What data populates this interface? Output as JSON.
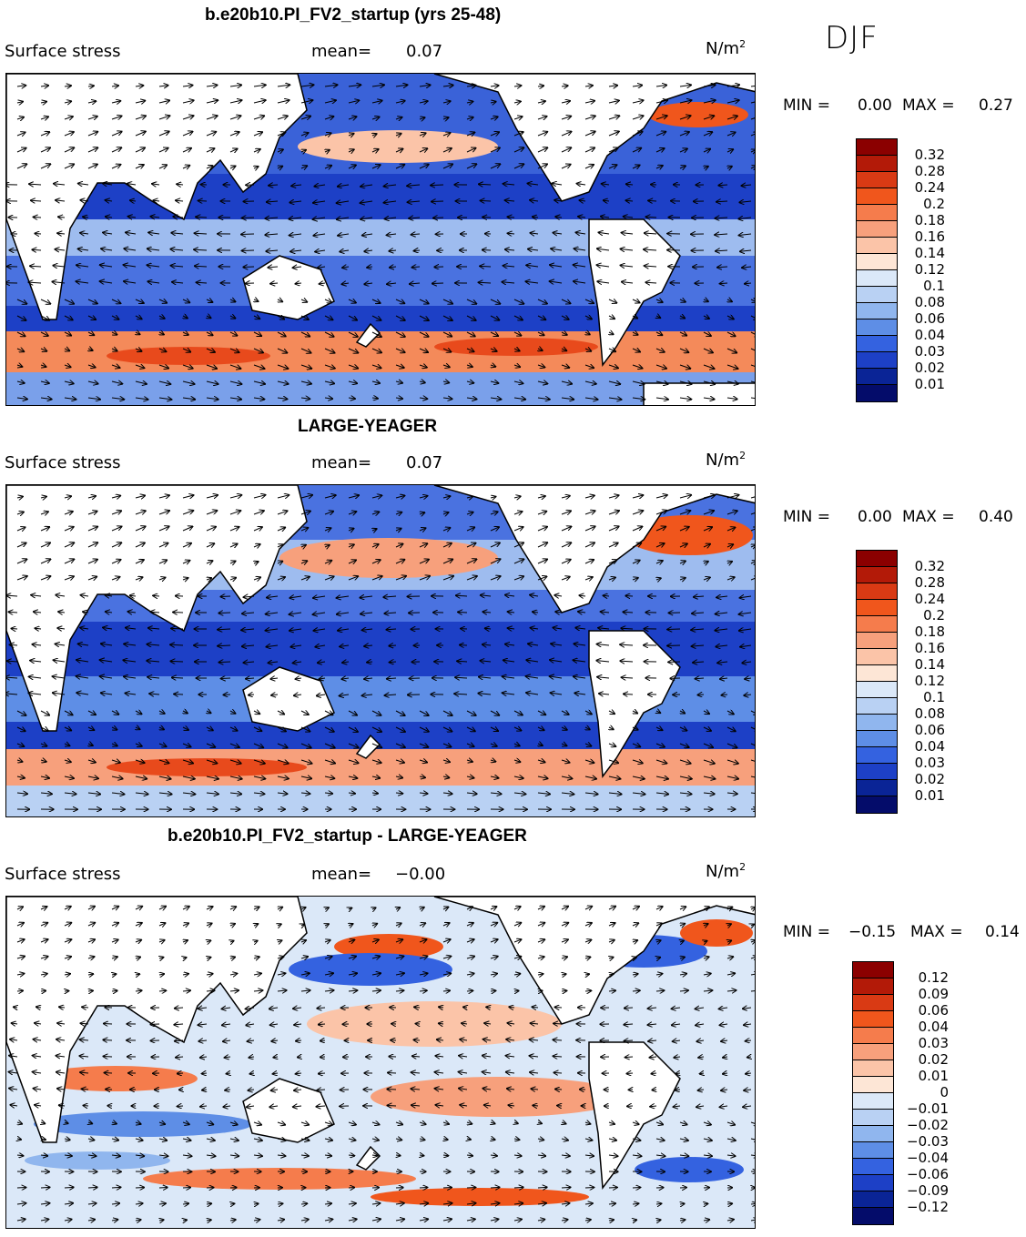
{
  "season": "DJF",
  "units": "N/m",
  "units_sup": "2",
  "field_label": "Surface stress",
  "mean_label": "mean=",
  "panels": [
    {
      "title": "b.e20b10.PI_FV2_startup (yrs 25-48)",
      "mean": "0.07",
      "min_label": "MIN =",
      "min": "0.00",
      "max_label": "MAX =",
      "max": "0.27",
      "colorbar_labels": [
        "0.32",
        "0.28",
        "0.24",
        "0.2",
        "0.18",
        "0.16",
        "0.14",
        "0.12",
        "0.1",
        "0.08",
        "0.06",
        "0.04",
        "0.03",
        "0.02",
        "0.01"
      ],
      "colorbar_colors": [
        "#8b0000",
        "#b31a08",
        "#d93a14",
        "#f0561c",
        "#f57c4c",
        "#f7a07c",
        "#fbc4a8",
        "#fde6d6",
        "#dbe8f8",
        "#b9d1f3",
        "#90b6ee",
        "#5e8ee6",
        "#3462e0",
        "#1d40c6",
        "#0a2496",
        "#040c6a"
      ]
    },
    {
      "title": "LARGE-YEAGER",
      "mean": "0.07",
      "min_label": "MIN =",
      "min": "0.00",
      "max_label": "MAX =",
      "max": "0.40",
      "colorbar_labels": [
        "0.32",
        "0.28",
        "0.24",
        "0.2",
        "0.18",
        "0.16",
        "0.14",
        "0.12",
        "0.1",
        "0.08",
        "0.06",
        "0.04",
        "0.03",
        "0.02",
        "0.01"
      ],
      "colorbar_colors": [
        "#8b0000",
        "#b31a08",
        "#d93a14",
        "#f0561c",
        "#f57c4c",
        "#f7a07c",
        "#fbc4a8",
        "#fde6d6",
        "#dbe8f8",
        "#b9d1f3",
        "#90b6ee",
        "#5e8ee6",
        "#3462e0",
        "#1d40c6",
        "#0a2496",
        "#040c6a"
      ]
    },
    {
      "title": "b.e20b10.PI_FV2_startup - LARGE-YEAGER",
      "mean": "−0.00",
      "min_label": "MIN =",
      "min": "−0.15",
      "max_label": "MAX =",
      "max": "0.14",
      "colorbar_labels": [
        "0.12",
        "0.09",
        "0.06",
        "0.04",
        "0.03",
        "0.02",
        "0.01",
        "0",
        "−0.01",
        "−0.02",
        "−0.03",
        "−0.04",
        "−0.06",
        "−0.09",
        "−0.12"
      ],
      "colorbar_colors": [
        "#8b0000",
        "#b31a08",
        "#d93a14",
        "#f0561c",
        "#f57c4c",
        "#f7a07c",
        "#fbc4a8",
        "#fde6d6",
        "#dbe8f8",
        "#b9d1f3",
        "#90b6ee",
        "#5e8ee6",
        "#3462e0",
        "#1d40c6",
        "#0a2496",
        "#040c6a"
      ]
    }
  ]
}
